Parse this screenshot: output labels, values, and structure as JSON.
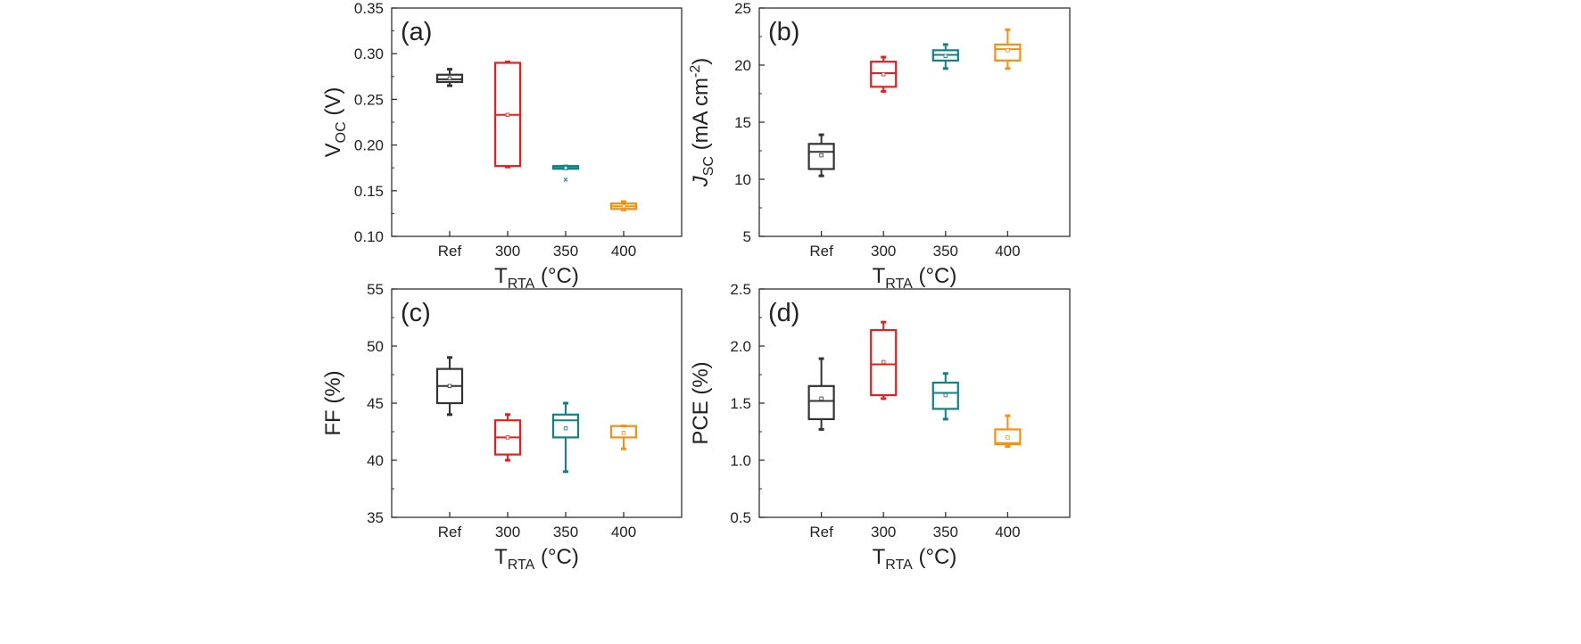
{
  "figure_description": "Box plots of solar cell parameters versus RTA temperature",
  "chart_data": [
    {
      "type": "box",
      "panel": "(a)",
      "ylabel": "V",
      "ylabel_sub": "OC",
      "ylabel_unit": " (V)",
      "xlabel": "T",
      "xlabel_sub": "RTA",
      "xlabel_unit": " (°C)",
      "categories": [
        "Ref",
        "300",
        "350",
        "400"
      ],
      "ylim": [
        0.1,
        0.35
      ],
      "yticks": [
        "0.10",
        "0.15",
        "0.20",
        "0.25",
        "0.30",
        "0.35"
      ],
      "colors": [
        "#333333",
        "#ee1c1c",
        "#0f8286",
        "#f7900f"
      ],
      "boxes": [
        {
          "min": 0.265,
          "q1": 0.269,
          "median": 0.272,
          "q3": 0.277,
          "max": 0.283,
          "mean": 0.273
        },
        {
          "min": 0.176,
          "q1": 0.177,
          "median": 0.233,
          "q3": 0.29,
          "max": 0.291,
          "mean": 0.233
        },
        {
          "min": 0.174,
          "q1": 0.174,
          "median": 0.175,
          "q3": 0.177,
          "max": 0.177,
          "mean": 0.175,
          "outliers": [
            0.162
          ]
        },
        {
          "min": 0.129,
          "q1": 0.13,
          "median": 0.133,
          "q3": 0.136,
          "max": 0.138,
          "mean": 0.133
        }
      ]
    },
    {
      "type": "box",
      "panel": "(b)",
      "ylabel": "J",
      "ylabel_sub": "SC",
      "ylabel_unit": " (mA cm",
      "ylabel_sup": "-2",
      "ylabel_end": ")",
      "xlabel": "T",
      "xlabel_sub": "RTA",
      "xlabel_unit": " (°C)",
      "categories": [
        "Ref",
        "300",
        "350",
        "400"
      ],
      "ylim": [
        5,
        25
      ],
      "yticks": [
        "5",
        "10",
        "15",
        "20",
        "25"
      ],
      "colors": [
        "#333333",
        "#ee1c1c",
        "#0f8286",
        "#f7900f"
      ],
      "boxes": [
        {
          "min": 10.3,
          "q1": 10.9,
          "median": 12.4,
          "q3": 13.1,
          "max": 13.9,
          "mean": 12.1
        },
        {
          "min": 17.7,
          "q1": 18.1,
          "median": 19.3,
          "q3": 20.3,
          "max": 20.7,
          "mean": 19.2
        },
        {
          "min": 19.7,
          "q1": 20.4,
          "median": 20.9,
          "q3": 21.3,
          "max": 21.8,
          "mean": 20.8
        },
        {
          "min": 19.7,
          "q1": 20.4,
          "median": 21.4,
          "q3": 21.8,
          "max": 23.1,
          "mean": 21.3
        }
      ]
    },
    {
      "type": "box",
      "panel": "(c)",
      "ylabel": "FF (%)",
      "xlabel": "T",
      "xlabel_sub": "RTA",
      "xlabel_unit": " (°C)",
      "categories": [
        "Ref",
        "300",
        "350",
        "400"
      ],
      "ylim": [
        35,
        55
      ],
      "yticks": [
        "35",
        "40",
        "45",
        "50",
        "55"
      ],
      "colors": [
        "#333333",
        "#ee1c1c",
        "#0f8286",
        "#f7900f"
      ],
      "boxes": [
        {
          "min": 44.0,
          "q1": 45.0,
          "median": 46.5,
          "q3": 48.0,
          "max": 49.0,
          "mean": 46.5
        },
        {
          "min": 40.0,
          "q1": 40.5,
          "median": 42.0,
          "q3": 43.5,
          "max": 44.0,
          "mean": 42.0
        },
        {
          "min": 39.0,
          "q1": 42.0,
          "median": 43.5,
          "q3": 44.0,
          "max": 45.0,
          "mean": 42.8
        },
        {
          "min": 41.0,
          "q1": 42.0,
          "median": 43.0,
          "q3": 43.0,
          "max": 43.0,
          "mean": 42.4
        }
      ]
    },
    {
      "type": "box",
      "panel": "(d)",
      "ylabel": "PCE (%)",
      "xlabel": "T",
      "xlabel_sub": "RTA",
      "xlabel_unit": " (°C)",
      "categories": [
        "Ref",
        "300",
        "350",
        "400"
      ],
      "ylim": [
        0.5,
        2.5
      ],
      "yticks": [
        "0.5",
        "1.0",
        "1.5",
        "2.0",
        "2.5"
      ],
      "colors": [
        "#333333",
        "#ee1c1c",
        "#0f8286",
        "#f7900f"
      ],
      "boxes": [
        {
          "min": 1.27,
          "q1": 1.36,
          "median": 1.52,
          "q3": 1.65,
          "max": 1.89,
          "mean": 1.54
        },
        {
          "min": 1.54,
          "q1": 1.57,
          "median": 1.84,
          "q3": 2.14,
          "max": 2.21,
          "mean": 1.86
        },
        {
          "min": 1.36,
          "q1": 1.45,
          "median": 1.59,
          "q3": 1.68,
          "max": 1.76,
          "mean": 1.57
        },
        {
          "min": 1.12,
          "q1": 1.14,
          "median": 1.15,
          "q3": 1.27,
          "max": 1.39,
          "mean": 1.2
        }
      ]
    }
  ]
}
